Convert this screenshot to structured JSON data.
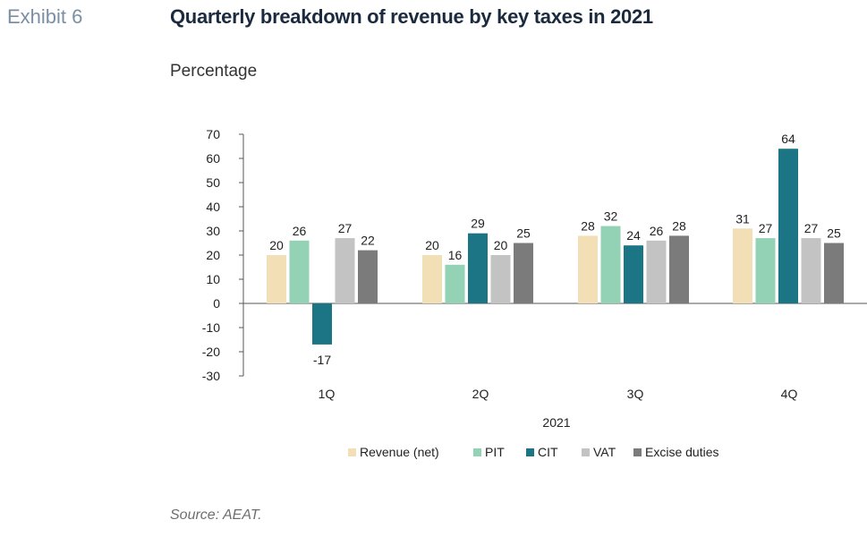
{
  "header": {
    "exhibit": "Exhibit 6",
    "title": "Quarterly breakdown of revenue by key taxes in 2021",
    "subtitle": "Percentage"
  },
  "footer": {
    "source": "Source: AEAT."
  },
  "chart_data": {
    "type": "bar",
    "categories": [
      "1Q",
      "2Q",
      "3Q",
      "4Q"
    ],
    "xlabel": "2021",
    "ylabel": "",
    "ylim": [
      -30,
      70
    ],
    "yticks": [
      70,
      60,
      50,
      40,
      30,
      20,
      10,
      0,
      -10,
      -20,
      -30
    ],
    "grid": false,
    "legend": "bottom",
    "series": [
      {
        "name": "Revenue (net)",
        "color": "#f2dfb5",
        "values": [
          20,
          20,
          28,
          31
        ]
      },
      {
        "name": "PIT",
        "color": "#93d2b4",
        "values": [
          26,
          16,
          32,
          27
        ]
      },
      {
        "name": "CIT",
        "color": "#1b7585",
        "values": [
          -17,
          29,
          24,
          64
        ]
      },
      {
        "name": "VAT",
        "color": "#c3c3c3",
        "values": [
          27,
          20,
          26,
          27
        ]
      },
      {
        "name": "Excise duties",
        "color": "#7b7b7b",
        "values": [
          22,
          25,
          28,
          25
        ]
      }
    ]
  }
}
